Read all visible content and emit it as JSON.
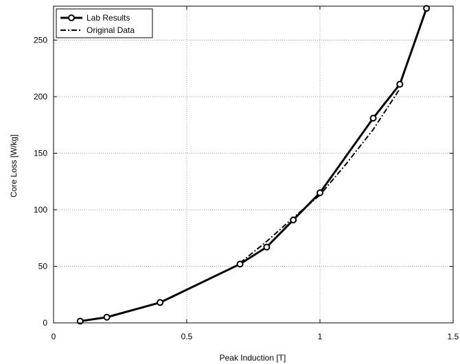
{
  "chart_data": {
    "type": "line",
    "xlabel": "Peak Induction [T]",
    "ylabel": "Core Loss [W/kg]",
    "xlim": [
      0,
      1.5
    ],
    "ylim": [
      0,
      280
    ],
    "xticks": [
      0,
      0.5,
      1,
      1.5
    ],
    "xtick_labels": [
      "0",
      "0.5",
      "1",
      "1.5"
    ],
    "yticks": [
      0,
      50,
      100,
      150,
      200,
      250
    ],
    "ytick_labels": [
      "0",
      "50",
      "100",
      "150",
      "200",
      "250"
    ],
    "grid": true,
    "legend_position": "top-left",
    "series": [
      {
        "name": "Lab Results",
        "style": "solid-with-circle-markers",
        "color": "#000000",
        "x": [
          0.1,
          0.2,
          0.4,
          0.7,
          0.8,
          0.9,
          1.0,
          1.2,
          1.3,
          1.4
        ],
        "y": [
          1.5,
          5,
          18,
          52,
          67,
          91,
          115,
          181,
          211,
          278
        ]
      },
      {
        "name": "Original Data",
        "style": "dash-dot",
        "color": "#000000",
        "x": [
          0.7,
          0.8,
          0.9,
          1.0,
          1.1,
          1.2,
          1.3
        ],
        "y": [
          53,
          72,
          93,
          113,
          141,
          171,
          207
        ]
      }
    ]
  }
}
